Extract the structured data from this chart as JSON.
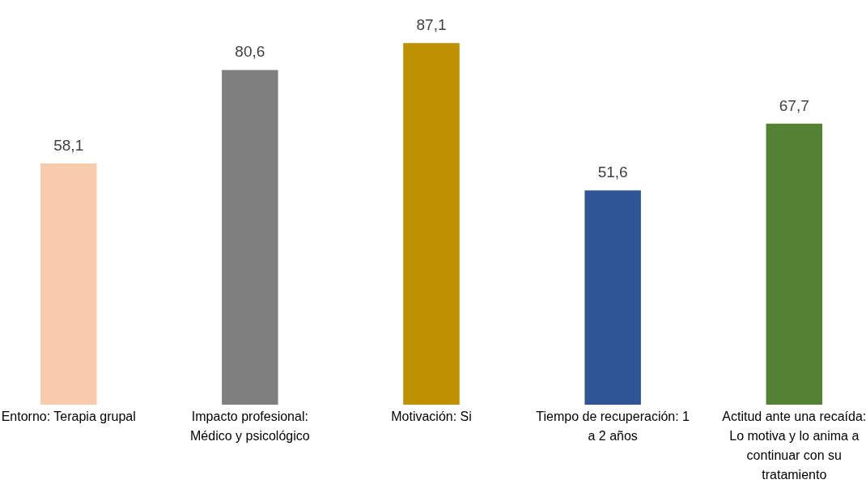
{
  "chart_data": {
    "type": "bar",
    "categories": [
      "Entorno: Terapia grupal",
      "Impacto profesional: Médico y psicológico",
      "Motivación: Si",
      "Tiempo de recuperación: 1 a 2 años",
      "Actitud ante una recaída: Lo motiva y lo anima a continuar con su tratamiento"
    ],
    "values": [
      58.1,
      80.6,
      87.1,
      51.6,
      67.7
    ],
    "colors": [
      "#f8cbad",
      "#7f7f7f",
      "#bf9000",
      "#2f5597",
      "#548235"
    ],
    "value_labels": [
      "58,1",
      "80,6",
      "87,1",
      "51,6",
      "67,7"
    ],
    "grid": false,
    "legend": false
  }
}
